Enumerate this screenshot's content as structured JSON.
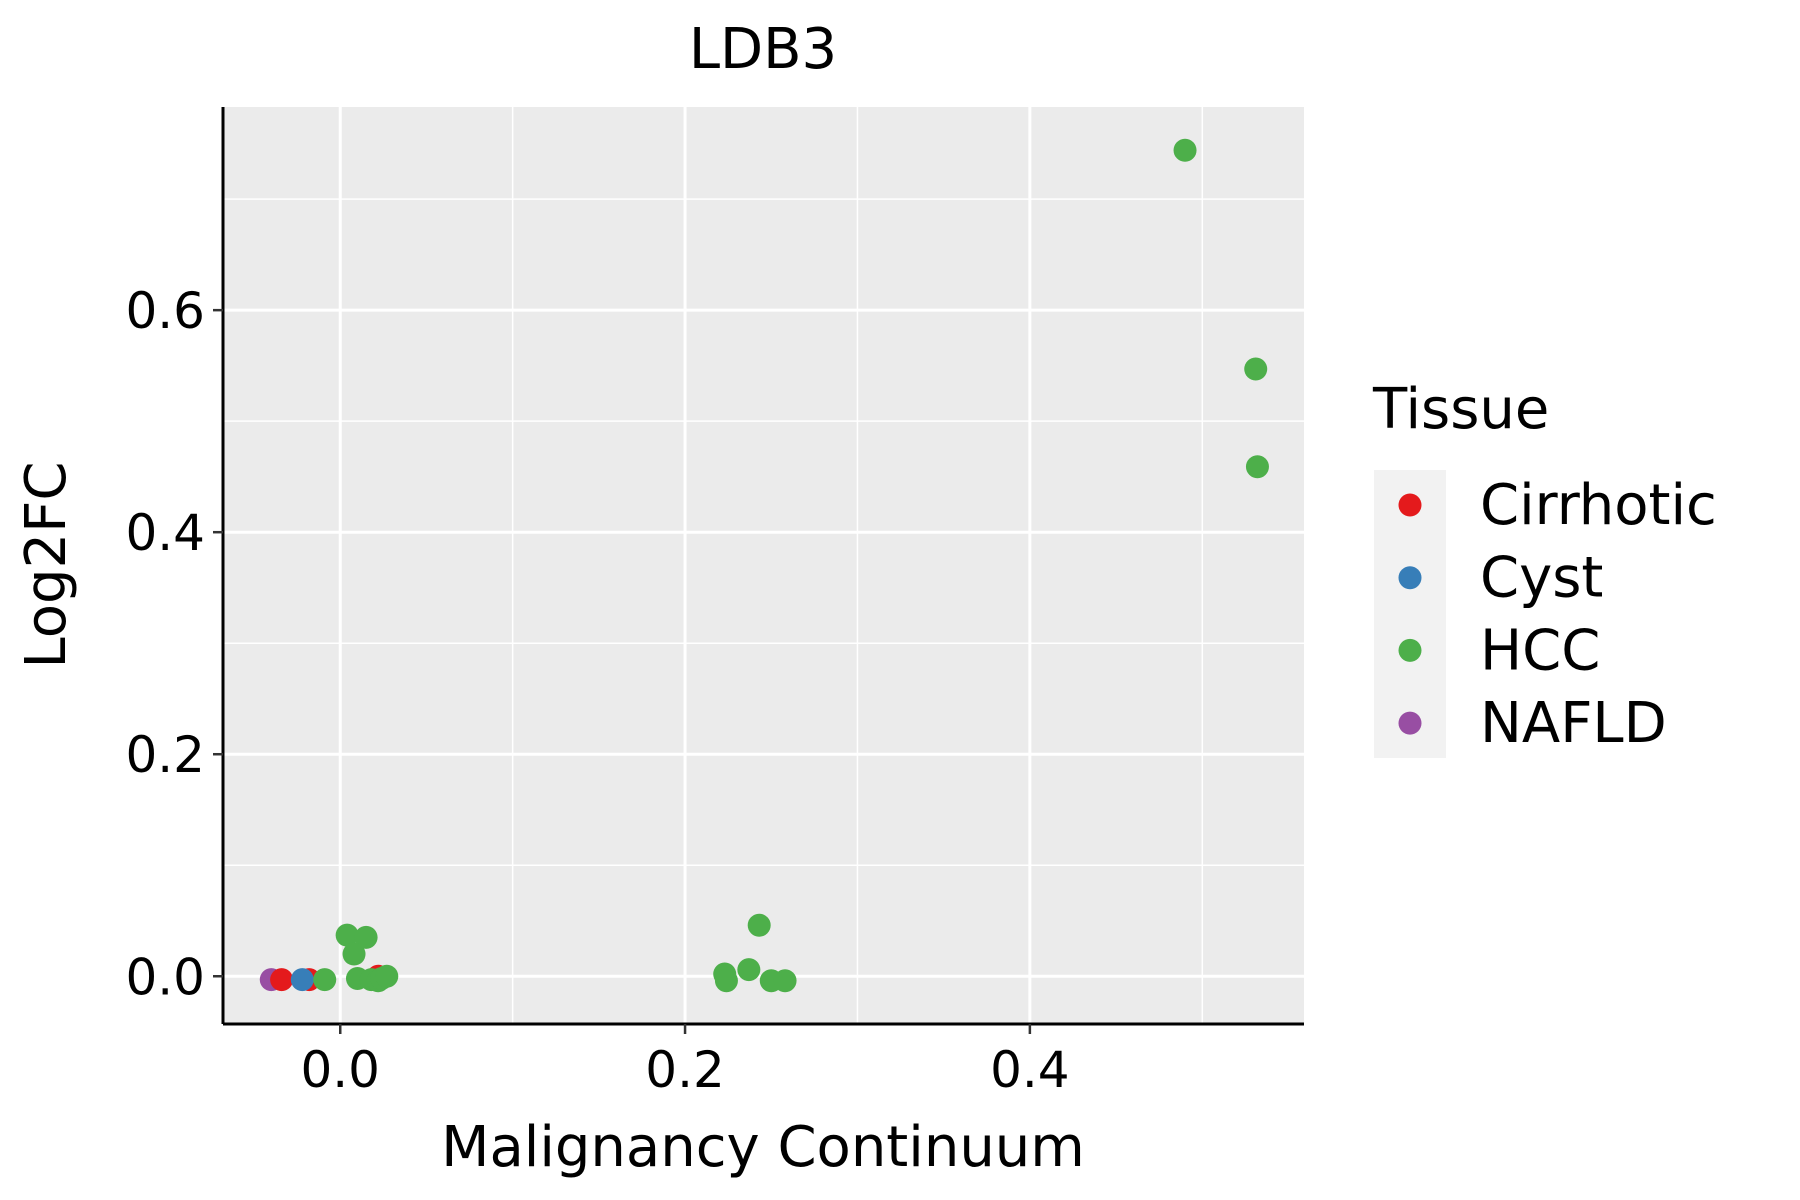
{
  "chart_data": {
    "type": "scatter",
    "title": "LDB3",
    "xlabel": "Malignancy Continuum",
    "ylabel": "Log2FC",
    "xlim": [
      -0.068,
      0.559
    ],
    "ylim": [
      -0.043,
      0.783
    ],
    "xticks": [
      0.0,
      0.2,
      0.4
    ],
    "xtick_labels": [
      "0.0",
      "0.2",
      "0.4"
    ],
    "yticks": [
      0.0,
      0.2,
      0.4,
      0.6
    ],
    "ytick_labels": [
      "0.0",
      "0.2",
      "0.4",
      "0.6"
    ],
    "grid": true,
    "legend": {
      "title": "Tissue",
      "placement": "right",
      "entries": [
        "Cirrhotic",
        "Cyst",
        "HCC",
        "NAFLD"
      ]
    },
    "colors": {
      "Cirrhotic": "#E41A1C",
      "Cyst": "#377EB8",
      "HCC": "#4DAF4A",
      "NAFLD": "#984EA3"
    },
    "points": [
      {
        "x": -0.04,
        "y": -0.003,
        "tissue": "NAFLD"
      },
      {
        "x": -0.018,
        "y": -0.003,
        "tissue": "Cirrhotic"
      },
      {
        "x": -0.034,
        "y": -0.003,
        "tissue": "Cirrhotic"
      },
      {
        "x": -0.022,
        "y": -0.003,
        "tissue": "Cyst"
      },
      {
        "x": -0.009,
        "y": -0.003,
        "tissue": "HCC"
      },
      {
        "x": 0.022,
        "y": 0.0,
        "tissue": "Cirrhotic"
      },
      {
        "x": 0.004,
        "y": 0.037,
        "tissue": "HCC"
      },
      {
        "x": 0.015,
        "y": 0.035,
        "tissue": "HCC"
      },
      {
        "x": 0.008,
        "y": 0.02,
        "tissue": "HCC"
      },
      {
        "x": 0.01,
        "y": -0.002,
        "tissue": "HCC"
      },
      {
        "x": 0.018,
        "y": -0.003,
        "tissue": "HCC"
      },
      {
        "x": 0.022,
        "y": -0.004,
        "tissue": "HCC"
      },
      {
        "x": 0.024,
        "y": -0.002,
        "tissue": "HCC"
      },
      {
        "x": 0.027,
        "y": 0.0,
        "tissue": "HCC"
      },
      {
        "x": 0.223,
        "y": 0.002,
        "tissue": "HCC"
      },
      {
        "x": 0.224,
        "y": -0.004,
        "tissue": "HCC"
      },
      {
        "x": 0.237,
        "y": 0.006,
        "tissue": "HCC"
      },
      {
        "x": 0.243,
        "y": 0.046,
        "tissue": "HCC"
      },
      {
        "x": 0.25,
        "y": -0.004,
        "tissue": "HCC"
      },
      {
        "x": 0.258,
        "y": -0.004,
        "tissue": "HCC"
      },
      {
        "x": 0.49,
        "y": 0.744,
        "tissue": "HCC"
      },
      {
        "x": 0.531,
        "y": 0.547,
        "tissue": "HCC"
      },
      {
        "x": 0.532,
        "y": 0.459,
        "tissue": "HCC"
      }
    ]
  }
}
